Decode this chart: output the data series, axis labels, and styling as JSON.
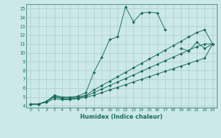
{
  "xlabel": "Humidex (Indice chaleur)",
  "bg_color": "#cce8e8",
  "line_color": "#1a6b5a",
  "grid_color": "#aacccc",
  "xlim": [
    -0.5,
    23.5
  ],
  "ylim": [
    3.8,
    15.5
  ],
  "xticks": [
    0,
    1,
    2,
    3,
    4,
    5,
    6,
    7,
    8,
    9,
    10,
    11,
    12,
    13,
    14,
    15,
    16,
    17,
    18,
    19,
    20,
    21,
    22,
    23
  ],
  "yticks": [
    4,
    5,
    6,
    7,
    8,
    9,
    10,
    11,
    12,
    13,
    14,
    15
  ],
  "series": [
    {
      "x": [
        0,
        1,
        2,
        3,
        4,
        5,
        6,
        7,
        8,
        9,
        10,
        11,
        12,
        13,
        14,
        15,
        16,
        17,
        18,
        19,
        20,
        21,
        22,
        23
      ],
      "y": [
        4.2,
        4.2,
        4.5,
        5.2,
        5.0,
        5.0,
        5.1,
        5.5,
        7.8,
        9.5,
        11.5,
        11.8,
        15.2,
        13.5,
        14.5,
        14.6,
        14.5,
        12.6,
        null,
        null,
        null,
        null,
        null,
        null
      ]
    },
    {
      "x": [
        12,
        13,
        14,
        15,
        16,
        17,
        18,
        19,
        20,
        21,
        22,
        23
      ],
      "y": [
        null,
        null,
        null,
        null,
        null,
        null,
        null,
        10.5,
        10.2,
        11.2,
        10.5,
        11.0
      ]
    },
    {
      "x": [
        0,
        1,
        2,
        3,
        4,
        5,
        6,
        7,
        8,
        9,
        10,
        11,
        12,
        13,
        14,
        15,
        16,
        17,
        18,
        19,
        20,
        21,
        22,
        23
      ],
      "y": [
        4.2,
        4.2,
        4.5,
        5.1,
        4.9,
        4.9,
        5.0,
        5.2,
        5.8,
        6.3,
        6.8,
        7.3,
        7.8,
        8.3,
        8.8,
        9.3,
        9.8,
        10.3,
        10.8,
        11.3,
        11.8,
        12.3,
        12.6,
        11.0
      ]
    },
    {
      "x": [
        0,
        1,
        2,
        3,
        4,
        5,
        6,
        7,
        8,
        9,
        10,
        11,
        12,
        13,
        14,
        15,
        16,
        17,
        18,
        19,
        20,
        21,
        22,
        23
      ],
      "y": [
        4.2,
        4.2,
        4.5,
        5.0,
        4.8,
        4.8,
        4.9,
        5.1,
        5.5,
        5.9,
        6.3,
        6.7,
        7.1,
        7.5,
        7.9,
        8.3,
        8.7,
        9.1,
        9.5,
        9.9,
        10.3,
        10.7,
        11.0,
        11.0
      ]
    },
    {
      "x": [
        0,
        1,
        2,
        3,
        4,
        5,
        6,
        7,
        8,
        9,
        10,
        11,
        12,
        13,
        14,
        15,
        16,
        17,
        18,
        19,
        20,
        21,
        22,
        23
      ],
      "y": [
        4.2,
        4.2,
        4.4,
        4.8,
        4.7,
        4.7,
        4.8,
        5.0,
        5.2,
        5.5,
        5.8,
        6.1,
        6.4,
        6.7,
        7.0,
        7.3,
        7.6,
        7.9,
        8.2,
        8.5,
        8.8,
        9.1,
        9.4,
        11.0
      ]
    }
  ]
}
